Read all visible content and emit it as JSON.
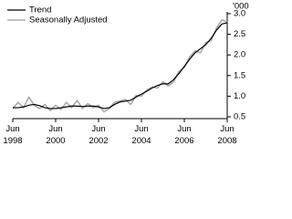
{
  "chart_data": {
    "type": "line",
    "y_label": "'000",
    "x": [
      1998.5,
      1998.75,
      1999,
      1999.25,
      1999.5,
      1999.75,
      2000,
      2000.25,
      2000.5,
      2000.75,
      2001,
      2001.25,
      2001.5,
      2001.75,
      2002,
      2002.25,
      2002.5,
      2002.75,
      2003,
      2003.25,
      2003.5,
      2003.75,
      2004,
      2004.25,
      2004.5,
      2004.75,
      2005,
      2005.25,
      2005.5,
      2005.75,
      2006,
      2006.25,
      2006.5,
      2006.75,
      2007,
      2007.25,
      2007.5,
      2007.75,
      2008,
      2008.25,
      2008.5
    ],
    "series": [
      {
        "name": "Trend",
        "color": "#000000",
        "width": 1.2,
        "values": [
          0.72,
          0.72,
          0.74,
          0.78,
          0.8,
          0.77,
          0.72,
          0.7,
          0.7,
          0.72,
          0.74,
          0.76,
          0.76,
          0.75,
          0.76,
          0.76,
          0.74,
          0.7,
          0.72,
          0.8,
          0.86,
          0.88,
          0.9,
          0.98,
          1.05,
          1.12,
          1.2,
          1.26,
          1.3,
          1.3,
          1.4,
          1.55,
          1.72,
          1.9,
          2.05,
          2.15,
          2.25,
          2.4,
          2.6,
          2.75,
          2.78
        ]
      },
      {
        "name": "Seasonally Adjusted",
        "color": "#aaaaaa",
        "width": 1.6,
        "values": [
          0.7,
          0.85,
          0.72,
          0.98,
          0.78,
          0.7,
          0.8,
          0.65,
          0.78,
          0.68,
          0.85,
          0.72,
          0.9,
          0.7,
          0.82,
          0.72,
          0.78,
          0.62,
          0.7,
          0.85,
          0.88,
          0.92,
          0.8,
          1.02,
          1.0,
          1.15,
          1.22,
          1.2,
          1.35,
          1.25,
          1.35,
          1.6,
          1.7,
          1.95,
          2.1,
          2.05,
          2.3,
          2.35,
          2.65,
          2.85,
          2.8
        ]
      }
    ],
    "xlim": [
      1998.5,
      2008.5
    ],
    "xticks": [
      {
        "value": 1998.5,
        "label": "Jun 1998"
      },
      {
        "value": 2000.5,
        "label": "Jun 2000"
      },
      {
        "value": 2002.5,
        "label": "Jun 2002"
      },
      {
        "value": 2004.5,
        "label": "Jun 2004"
      },
      {
        "value": 2006.5,
        "label": "Jun 2006"
      },
      {
        "value": 2008.5,
        "label": "Jun 2008"
      }
    ],
    "ylim": [
      0.5,
      3.0
    ],
    "yticks": [
      {
        "value": 0.5,
        "label": "0.5"
      },
      {
        "value": 1.0,
        "label": "1.0"
      },
      {
        "value": 1.5,
        "label": "1.5"
      },
      {
        "value": 2.0,
        "label": "2.0"
      },
      {
        "value": 2.5,
        "label": "2.5"
      },
      {
        "value": 3.0,
        "label": "3.0"
      }
    ],
    "grid": false
  }
}
